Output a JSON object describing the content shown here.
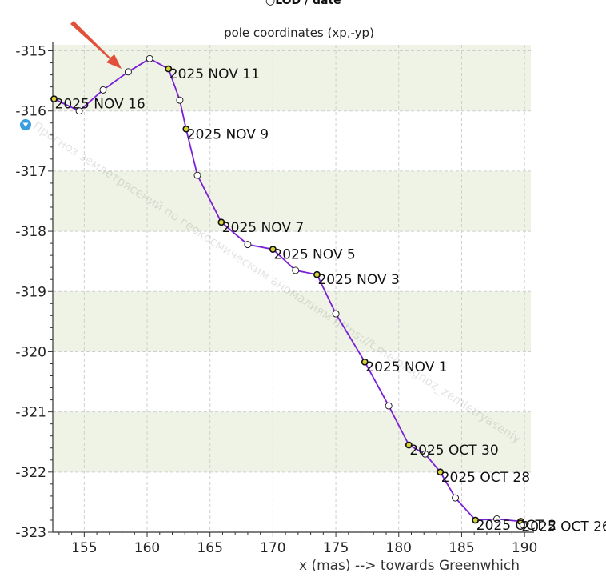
{
  "top_partial_label": "○LOD / date",
  "watermark": "Прогноз землетрясений по геокосмическим аномалиям https://t.me/prognoz_zemletryaseniy",
  "colors": {
    "line": "#7b1fd8",
    "band": "#eef3e6",
    "grid": "#cfcfcf",
    "arrow": "#e0503a",
    "marker_dated": "#d8d23a",
    "marker_plain": "#ffffff",
    "badge": "#3a9de0"
  },
  "chart_data": {
    "type": "line",
    "title": "pole coordinates (xp,-yp)",
    "xlabel": "x (mas) --> towards Greenwhich",
    "ylabel": "",
    "xlim": [
      152.5,
      190.5
    ],
    "ylim": [
      -323,
      -314.9
    ],
    "x_ticks": [
      155,
      160,
      165,
      170,
      175,
      180,
      185,
      190
    ],
    "y_ticks": [
      -315,
      -316,
      -317,
      -318,
      -319,
      -320,
      -321,
      -322,
      -323
    ],
    "x_tick_labels": [
      "155",
      "160",
      "165",
      "170",
      "175",
      "180",
      "185",
      "190"
    ],
    "y_tick_labels": [
      "-315",
      "-316",
      "-317",
      "-318",
      "-319",
      "-320",
      "-321",
      "-322",
      "-323"
    ],
    "grid": true,
    "background": "alternating horizontal bands",
    "points": [
      {
        "x": 152.6,
        "y": -315.8,
        "label": "2025 NOV 16"
      },
      {
        "x": 154.6,
        "y": -316.0
      },
      {
        "x": 156.5,
        "y": -315.65
      },
      {
        "x": 158.5,
        "y": -315.35
      },
      {
        "x": 160.2,
        "y": -315.13
      },
      {
        "x": 161.7,
        "y": -315.3,
        "label": "2025 NOV 11"
      },
      {
        "x": 162.6,
        "y": -315.82
      },
      {
        "x": 163.1,
        "y": -316.3,
        "label": "2025 NOV 9"
      },
      {
        "x": 164.0,
        "y": -317.07
      },
      {
        "x": 165.9,
        "y": -317.85,
        "label": "2025 NOV 7"
      },
      {
        "x": 168.0,
        "y": -318.22
      },
      {
        "x": 170.0,
        "y": -318.3,
        "label": "2025 NOV 5"
      },
      {
        "x": 171.8,
        "y": -318.65
      },
      {
        "x": 173.5,
        "y": -318.72,
        "label": "2025 NOV 3"
      },
      {
        "x": 175.0,
        "y": -319.37
      },
      {
        "x": 177.3,
        "y": -320.17,
        "label": "2025 NOV 1"
      },
      {
        "x": 179.2,
        "y": -320.9
      },
      {
        "x": 180.8,
        "y": -321.55,
        "label": "2025 OCT 30"
      },
      {
        "x": 182.1,
        "y": -321.7
      },
      {
        "x": 183.3,
        "y": -322.0,
        "label": "2025 OCT 28"
      },
      {
        "x": 184.5,
        "y": -322.43
      },
      {
        "x": 186.1,
        "y": -322.8,
        "label": "2025 OCT 2"
      },
      {
        "x": 187.8,
        "y": -322.78
      },
      {
        "x": 189.7,
        "y": -322.82,
        "label": "2025 OCT 26"
      },
      {
        "x": 189.9,
        "y": -322.88
      }
    ]
  }
}
